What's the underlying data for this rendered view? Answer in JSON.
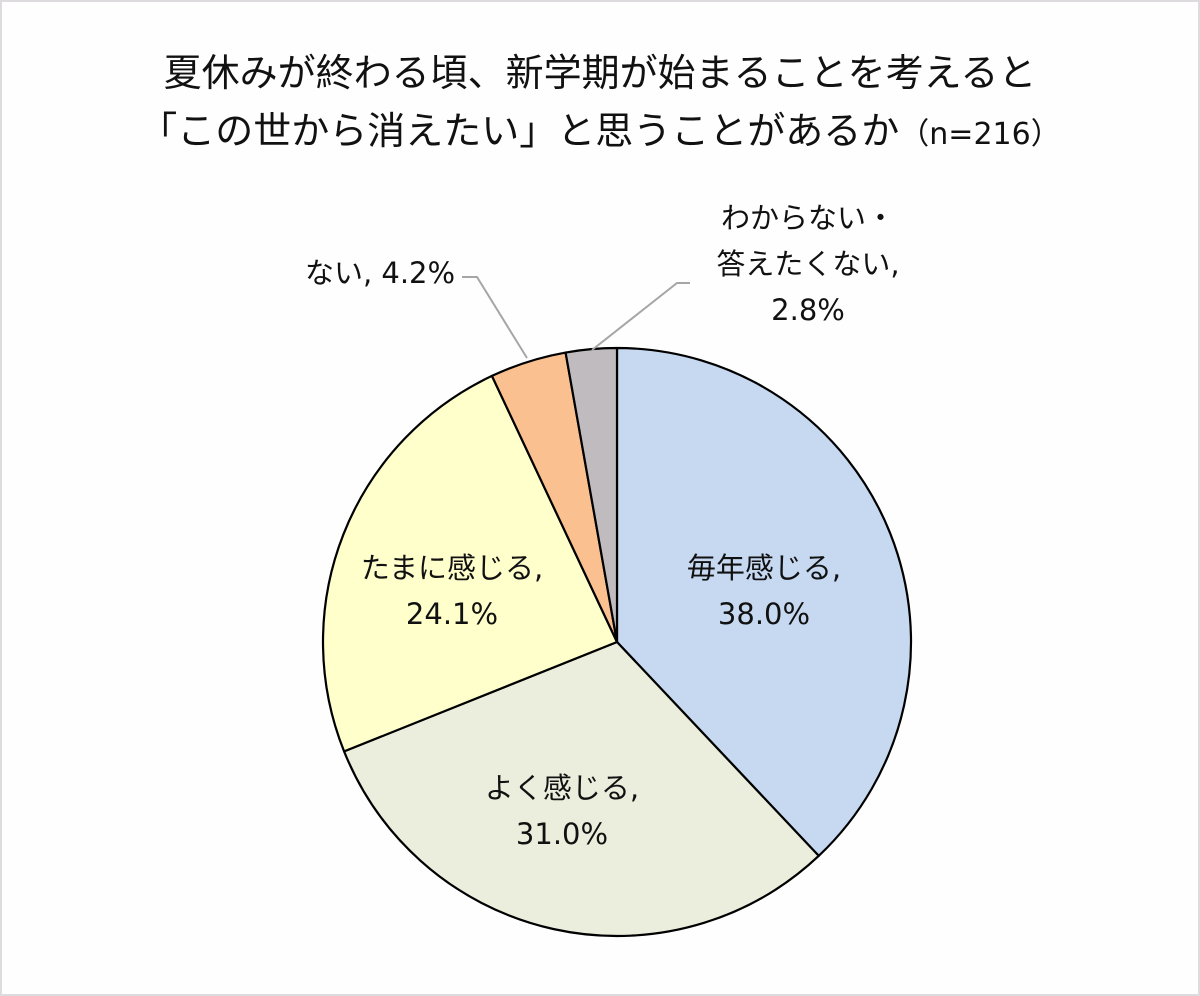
{
  "title": {
    "line1": "夏休みが終わる頃、新学期が始まることを考えると",
    "line2": "「この世から消えたい」と思うことがあるか",
    "n_label": "（n=216）"
  },
  "labels": {
    "every_year": {
      "name": "毎年感じる,",
      "value": "38.0%"
    },
    "often": {
      "name": "よく感じる,",
      "value": "31.0%"
    },
    "sometimes": {
      "name": "たまに感じる,",
      "value": "24.1%"
    },
    "never": {
      "name": "ない, 4.2%"
    },
    "unknown": {
      "line1": "わからない・",
      "line2": "答えたくない,",
      "value": "2.8%"
    }
  },
  "chart_data": {
    "type": "pie",
    "title": "夏休みが終わる頃、新学期が始まることを考えると「この世から消えたい」と思うことがあるか（n=216）",
    "sample_size": 216,
    "categories": [
      "毎年感じる",
      "よく感じる",
      "たまに感じる",
      "ない",
      "わからない・答えたくない"
    ],
    "values": [
      38.0,
      31.0,
      24.1,
      4.2,
      2.8
    ],
    "unit": "%",
    "colors": [
      "#C6D9F1",
      "#ECEEDD",
      "#FFFFCC",
      "#FAC090",
      "#BFBBBF"
    ],
    "start_angle": "12 o'clock",
    "direction": "clockwise",
    "data_labels": [
      "毎年感じる, 38.0%",
      "よく感じる, 31.0%",
      "たまに感じる, 24.1%",
      "ない, 4.2%",
      "わからない・答えたくない, 2.8%"
    ],
    "legend": "none"
  }
}
